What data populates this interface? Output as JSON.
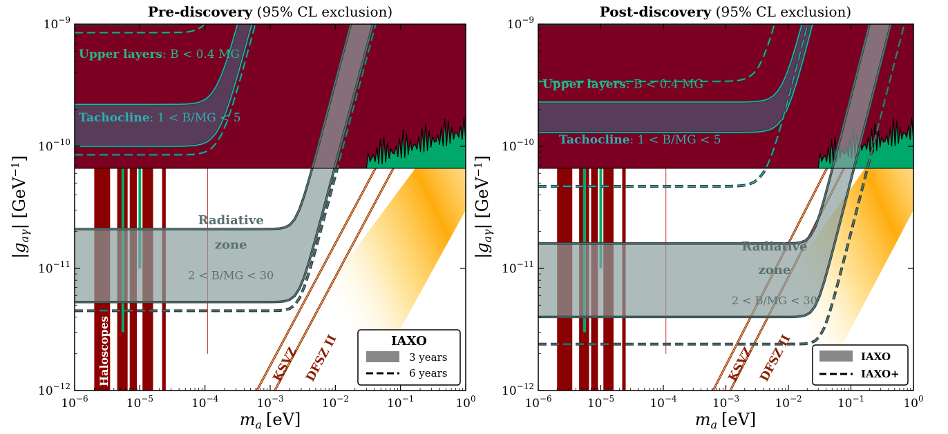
{
  "chart_data": [
    {
      "type": "area",
      "title_bold": "Pre-discovery",
      "title_rest": " (95% CL exclusion)",
      "xlabel": "m",
      "xlabel_sub": "a",
      "xlabel_unit": "[eV]",
      "ylabel": "|g",
      "ylabel_sub": "aγ",
      "ylabel_unit": "| [GeV",
      "ylabel_exp": "−1",
      "ylabel_close": "]",
      "x_scale": "log",
      "y_scale": "log",
      "xlim": [
        1e-06,
        1
      ],
      "ylim": [
        1e-12,
        1e-09
      ],
      "x_ticks": [
        {
          "base": "10",
          "exp": "−6"
        },
        {
          "base": "10",
          "exp": "−5"
        },
        {
          "base": "10",
          "exp": "−4"
        },
        {
          "base": "10",
          "exp": "−3"
        },
        {
          "base": "10",
          "exp": "−2"
        },
        {
          "base": "10",
          "exp": "−1"
        },
        {
          "base": "10",
          "exp": "0"
        }
      ],
      "y_ticks": [
        {
          "base": "10",
          "exp": "−12"
        },
        {
          "base": "10",
          "exp": "−11"
        },
        {
          "base": "10",
          "exp": "−10"
        },
        {
          "base": "10",
          "exp": "−9"
        }
      ],
      "cast_limit": 6.6e-11,
      "region_labels": {
        "upper_bold": "Upper layers",
        "upper_rest": ": B < 0.4 MG",
        "tacho_bold": "Tachocline",
        "tacho_rest": ": 1 < B/MG < 5",
        "radiative_1": "Radiative",
        "radiative_2": "zone",
        "radiative_3": "2 < B/MG < 30",
        "haloscopes": "Haloscopes",
        "ksvz": "KSVZ",
        "dfsz": "DFSZ II"
      },
      "legend": {
        "position": "lower-right",
        "title": "IAXO",
        "entries": [
          "3 years",
          "6 years"
        ]
      },
      "series": [
        {
          "name": "Upper layers",
          "plateau_3y": 1e-09,
          "plateau_6y": 8.5e-10,
          "knee_mass": 0.00012
        },
        {
          "name": "Tachocline",
          "plateau_3y_upper": 2.2e-10,
          "plateau_3y_lower": 1e-10,
          "plateau_6y": 8.5e-11,
          "knee_mass": 0.00015
        },
        {
          "name": "Radiative zone",
          "plateau_3y_upper": 2.1e-11,
          "plateau_3y_lower": 5.3e-12,
          "plateau_6y": 4.5e-12,
          "knee_mass": 0.0025
        }
      ]
    },
    {
      "type": "area",
      "title_bold": "Post-discovery",
      "title_rest": " (95% CL exclusion)",
      "xlabel": "m",
      "xlabel_sub": "a",
      "xlabel_unit": "[eV]",
      "ylabel": "|g",
      "ylabel_sub": "aγ",
      "ylabel_unit": "| [GeV",
      "ylabel_exp": "−1",
      "ylabel_close": "]",
      "x_scale": "log",
      "y_scale": "log",
      "xlim": [
        1e-06,
        1
      ],
      "ylim": [
        1e-12,
        1e-09
      ],
      "x_ticks": [
        {
          "base": "10",
          "exp": "−6"
        },
        {
          "base": "10",
          "exp": "−5"
        },
        {
          "base": "10",
          "exp": "−4"
        },
        {
          "base": "10",
          "exp": "−3"
        },
        {
          "base": "10",
          "exp": "−2"
        },
        {
          "base": "10",
          "exp": "−1"
        },
        {
          "base": "10",
          "exp": "0"
        }
      ],
      "y_ticks": [
        {
          "base": "10",
          "exp": "−12"
        },
        {
          "base": "10",
          "exp": "−11"
        },
        {
          "base": "10",
          "exp": "−10"
        },
        {
          "base": "10",
          "exp": "−9"
        }
      ],
      "cast_limit": 6.6e-11,
      "region_labels": {
        "upper_bold": "Upper layers",
        "upper_rest": ": B < 0.4 MG",
        "tacho_bold": "Tachocline",
        "tacho_rest": ": 1 < B/MG < 5",
        "radiative_1": "Radiative",
        "radiative_2": "zone",
        "radiative_3": "2 < B/MG < 30",
        "ksvz": "KSVZ",
        "dfsz": "DFSZ II"
      },
      "legend": {
        "position": "lower-right",
        "entries": [
          "IAXO",
          "IAXO+"
        ]
      },
      "series": [
        {
          "name": "Upper layers",
          "plateau_iaxo": 1e-09,
          "plateau_iaxo_plus": 3.4e-10,
          "knee_mass": 0.008
        },
        {
          "name": "Tachocline",
          "plateau_iaxo": 1.3e-10,
          "plateau_iaxo_plus": 4.7e-11,
          "knee_mass": 0.008
        },
        {
          "name": "Radiative zone",
          "plateau_iaxo_upper": 1.6e-11,
          "plateau_iaxo_lower": 4e-12,
          "plateau_iaxo_plus": 2.4e-12,
          "knee_mass": 0.025
        }
      ]
    }
  ],
  "colors": {
    "cast": "#7b0022",
    "haloscope": "#8b0000",
    "green_limit": "#00a86b",
    "upper_fill": "#4a5a4a",
    "tacho_fill": "#4a5670",
    "radiative_fill": "#8a9e9e",
    "band": "#ffb020",
    "radiative_text": "#5a7070",
    "tacho_text": "#2bb0b0",
    "upper_text": "#2bb58a"
  }
}
